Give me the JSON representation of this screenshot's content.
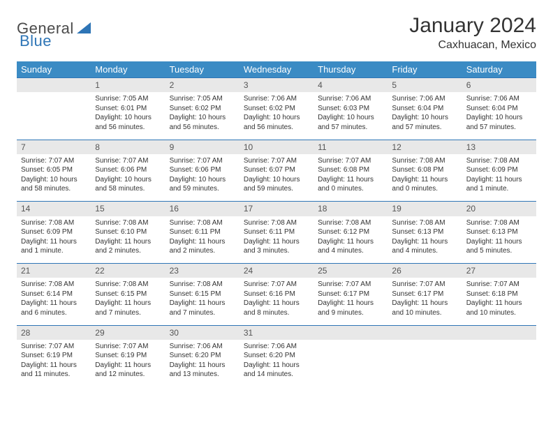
{
  "logo": {
    "text1": "General",
    "text2": "Blue"
  },
  "title": "January 2024",
  "location": "Caxhuacan, Mexico",
  "colors": {
    "header_bg": "#3b8bc4",
    "header_text": "#ffffff",
    "daynum_bg": "#e8e8e8",
    "border": "#2e75b6",
    "text": "#333333"
  },
  "weekdays": [
    "Sunday",
    "Monday",
    "Tuesday",
    "Wednesday",
    "Thursday",
    "Friday",
    "Saturday"
  ],
  "weeks": [
    {
      "nums": [
        "",
        "1",
        "2",
        "3",
        "4",
        "5",
        "6"
      ],
      "cells": [
        {},
        {
          "sunrise": "Sunrise: 7:05 AM",
          "sunset": "Sunset: 6:01 PM",
          "daylight": "Daylight: 10 hours and 56 minutes."
        },
        {
          "sunrise": "Sunrise: 7:05 AM",
          "sunset": "Sunset: 6:02 PM",
          "daylight": "Daylight: 10 hours and 56 minutes."
        },
        {
          "sunrise": "Sunrise: 7:06 AM",
          "sunset": "Sunset: 6:02 PM",
          "daylight": "Daylight: 10 hours and 56 minutes."
        },
        {
          "sunrise": "Sunrise: 7:06 AM",
          "sunset": "Sunset: 6:03 PM",
          "daylight": "Daylight: 10 hours and 57 minutes."
        },
        {
          "sunrise": "Sunrise: 7:06 AM",
          "sunset": "Sunset: 6:04 PM",
          "daylight": "Daylight: 10 hours and 57 minutes."
        },
        {
          "sunrise": "Sunrise: 7:06 AM",
          "sunset": "Sunset: 6:04 PM",
          "daylight": "Daylight: 10 hours and 57 minutes."
        }
      ]
    },
    {
      "nums": [
        "7",
        "8",
        "9",
        "10",
        "11",
        "12",
        "13"
      ],
      "cells": [
        {
          "sunrise": "Sunrise: 7:07 AM",
          "sunset": "Sunset: 6:05 PM",
          "daylight": "Daylight: 10 hours and 58 minutes."
        },
        {
          "sunrise": "Sunrise: 7:07 AM",
          "sunset": "Sunset: 6:06 PM",
          "daylight": "Daylight: 10 hours and 58 minutes."
        },
        {
          "sunrise": "Sunrise: 7:07 AM",
          "sunset": "Sunset: 6:06 PM",
          "daylight": "Daylight: 10 hours and 59 minutes."
        },
        {
          "sunrise": "Sunrise: 7:07 AM",
          "sunset": "Sunset: 6:07 PM",
          "daylight": "Daylight: 10 hours and 59 minutes."
        },
        {
          "sunrise": "Sunrise: 7:07 AM",
          "sunset": "Sunset: 6:08 PM",
          "daylight": "Daylight: 11 hours and 0 minutes."
        },
        {
          "sunrise": "Sunrise: 7:08 AM",
          "sunset": "Sunset: 6:08 PM",
          "daylight": "Daylight: 11 hours and 0 minutes."
        },
        {
          "sunrise": "Sunrise: 7:08 AM",
          "sunset": "Sunset: 6:09 PM",
          "daylight": "Daylight: 11 hours and 1 minute."
        }
      ]
    },
    {
      "nums": [
        "14",
        "15",
        "16",
        "17",
        "18",
        "19",
        "20"
      ],
      "cells": [
        {
          "sunrise": "Sunrise: 7:08 AM",
          "sunset": "Sunset: 6:09 PM",
          "daylight": "Daylight: 11 hours and 1 minute."
        },
        {
          "sunrise": "Sunrise: 7:08 AM",
          "sunset": "Sunset: 6:10 PM",
          "daylight": "Daylight: 11 hours and 2 minutes."
        },
        {
          "sunrise": "Sunrise: 7:08 AM",
          "sunset": "Sunset: 6:11 PM",
          "daylight": "Daylight: 11 hours and 2 minutes."
        },
        {
          "sunrise": "Sunrise: 7:08 AM",
          "sunset": "Sunset: 6:11 PM",
          "daylight": "Daylight: 11 hours and 3 minutes."
        },
        {
          "sunrise": "Sunrise: 7:08 AM",
          "sunset": "Sunset: 6:12 PM",
          "daylight": "Daylight: 11 hours and 4 minutes."
        },
        {
          "sunrise": "Sunrise: 7:08 AM",
          "sunset": "Sunset: 6:13 PM",
          "daylight": "Daylight: 11 hours and 4 minutes."
        },
        {
          "sunrise": "Sunrise: 7:08 AM",
          "sunset": "Sunset: 6:13 PM",
          "daylight": "Daylight: 11 hours and 5 minutes."
        }
      ]
    },
    {
      "nums": [
        "21",
        "22",
        "23",
        "24",
        "25",
        "26",
        "27"
      ],
      "cells": [
        {
          "sunrise": "Sunrise: 7:08 AM",
          "sunset": "Sunset: 6:14 PM",
          "daylight": "Daylight: 11 hours and 6 minutes."
        },
        {
          "sunrise": "Sunrise: 7:08 AM",
          "sunset": "Sunset: 6:15 PM",
          "daylight": "Daylight: 11 hours and 7 minutes."
        },
        {
          "sunrise": "Sunrise: 7:08 AM",
          "sunset": "Sunset: 6:15 PM",
          "daylight": "Daylight: 11 hours and 7 minutes."
        },
        {
          "sunrise": "Sunrise: 7:07 AM",
          "sunset": "Sunset: 6:16 PM",
          "daylight": "Daylight: 11 hours and 8 minutes."
        },
        {
          "sunrise": "Sunrise: 7:07 AM",
          "sunset": "Sunset: 6:17 PM",
          "daylight": "Daylight: 11 hours and 9 minutes."
        },
        {
          "sunrise": "Sunrise: 7:07 AM",
          "sunset": "Sunset: 6:17 PM",
          "daylight": "Daylight: 11 hours and 10 minutes."
        },
        {
          "sunrise": "Sunrise: 7:07 AM",
          "sunset": "Sunset: 6:18 PM",
          "daylight": "Daylight: 11 hours and 10 minutes."
        }
      ]
    },
    {
      "nums": [
        "28",
        "29",
        "30",
        "31",
        "",
        "",
        ""
      ],
      "cells": [
        {
          "sunrise": "Sunrise: 7:07 AM",
          "sunset": "Sunset: 6:19 PM",
          "daylight": "Daylight: 11 hours and 11 minutes."
        },
        {
          "sunrise": "Sunrise: 7:07 AM",
          "sunset": "Sunset: 6:19 PM",
          "daylight": "Daylight: 11 hours and 12 minutes."
        },
        {
          "sunrise": "Sunrise: 7:06 AM",
          "sunset": "Sunset: 6:20 PM",
          "daylight": "Daylight: 11 hours and 13 minutes."
        },
        {
          "sunrise": "Sunrise: 7:06 AM",
          "sunset": "Sunset: 6:20 PM",
          "daylight": "Daylight: 11 hours and 14 minutes."
        },
        {},
        {},
        {}
      ]
    }
  ]
}
